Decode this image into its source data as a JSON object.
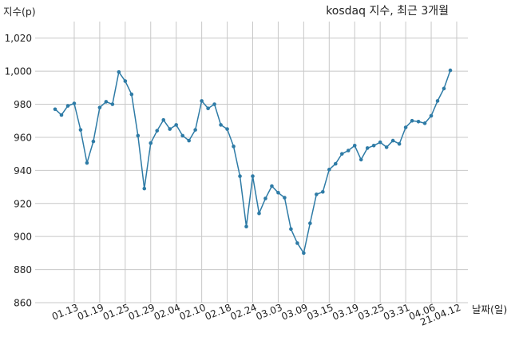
{
  "chart_data": {
    "type": "line",
    "title": "kosdaq 지수, 최근 3개월",
    "xlabel": "날짜(일)",
    "ylabel": "지수(p)",
    "ylim": [
      860,
      1030
    ],
    "yticks": [
      860,
      880,
      900,
      920,
      940,
      960,
      980,
      1000,
      1020
    ],
    "ytick_labels": [
      "860",
      "880",
      "900",
      "920",
      "940",
      "960",
      "980",
      "1,000",
      "1,020"
    ],
    "xticks": [
      "01.13",
      "01.19",
      "01.25",
      "01.29",
      "02.04",
      "02.10",
      "02.18",
      "02.24",
      "03.03",
      "03.09",
      "03.15",
      "03.19",
      "03.25",
      "03.31",
      "04.06",
      "21.04.12"
    ],
    "xtick_index": [
      3,
      7,
      11,
      15,
      19,
      23,
      27,
      31,
      35,
      39,
      43,
      47,
      51,
      55,
      59,
      63
    ],
    "grid": true,
    "legend": "none",
    "color": "#2e7ba6",
    "series": [
      {
        "name": "",
        "values": [
          977,
          973.5,
          979,
          980.5,
          964.5,
          944.5,
          957.5,
          978,
          981.5,
          980,
          999.5,
          994,
          986,
          961,
          929,
          956.5,
          964,
          970.5,
          965,
          967.5,
          961,
          958,
          964.5,
          982,
          977.5,
          980,
          967.5,
          965,
          954.5,
          936.5,
          906,
          936.5,
          914,
          923,
          930.5,
          926.5,
          923.5,
          904.5,
          896,
          890,
          908,
          925.5,
          927,
          940.5,
          944,
          950,
          952,
          955,
          946.5,
          953.5,
          955,
          957,
          954,
          958,
          956,
          966,
          970,
          969.5,
          968.5,
          973,
          982,
          989.5,
          1000.5
        ]
      }
    ]
  }
}
